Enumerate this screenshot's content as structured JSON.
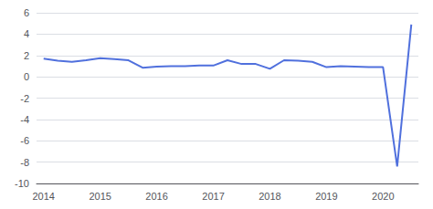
{
  "chart_data": {
    "type": "line",
    "categories": [
      "2014",
      null,
      null,
      null,
      "2015",
      null,
      null,
      null,
      "2016",
      null,
      null,
      null,
      "2017",
      null,
      null,
      null,
      "2018",
      null,
      null,
      null,
      "2019",
      null,
      null,
      null,
      "2020",
      null,
      null
    ],
    "values": [
      1.7,
      1.5,
      1.4,
      1.55,
      1.75,
      1.65,
      1.55,
      0.85,
      0.95,
      1.0,
      1.0,
      1.05,
      1.05,
      1.55,
      1.2,
      1.2,
      0.75,
      1.55,
      1.5,
      1.4,
      0.9,
      1.0,
      0.95,
      0.9,
      0.9,
      -8.4,
      4.9
    ],
    "ylim": [
      -10,
      6
    ],
    "yticks": [
      -10,
      -8,
      -6,
      -4,
      -2,
      0,
      2,
      4,
      6
    ],
    "grid": true
  }
}
